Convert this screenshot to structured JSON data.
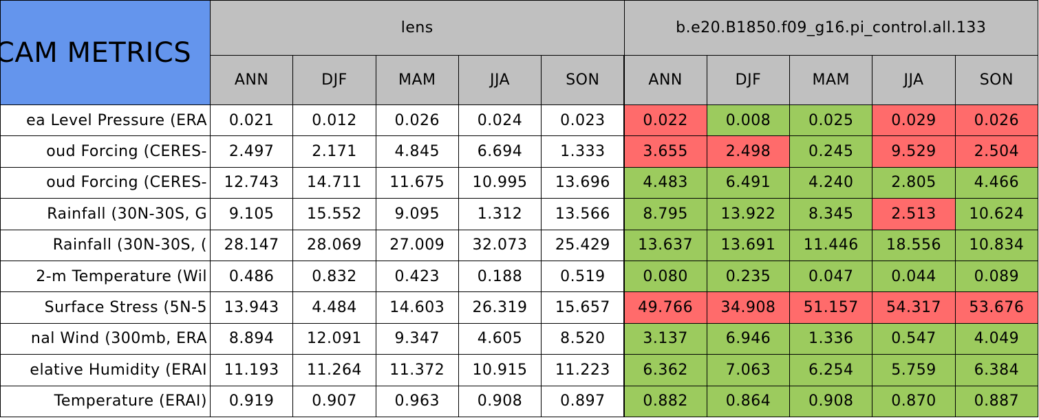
{
  "title": "CAM METRICS",
  "groups": [
    "lens",
    "b.e20.B1850.f09_g16.pi_control.all.133"
  ],
  "seasons": [
    "ANN",
    "DJF",
    "MAM",
    "JJA",
    "SON",
    "ANN",
    "DJF",
    "MAM",
    "JJA",
    "SON"
  ],
  "rows": [
    {
      "label": "ea Level Pressure (ERA",
      "values": [
        "0.021",
        "0.012",
        "0.026",
        "0.024",
        "0.023",
        "0.022",
        "0.008",
        "0.025",
        "0.029",
        "0.026"
      ],
      "colors": [
        "#ffffff",
        "#ffffff",
        "#ffffff",
        "#ffffff",
        "#ffffff",
        "#ff6b6b",
        "#9ccb5e",
        "#9ccb5e",
        "#ff6b6b",
        "#ff6b6b"
      ]
    },
    {
      "label": "oud Forcing (CERES-",
      "values": [
        "2.497",
        "2.171",
        "4.845",
        "6.694",
        "1.333",
        "3.655",
        "2.498",
        "0.245",
        "9.529",
        "2.504"
      ],
      "colors": [
        "#ffffff",
        "#ffffff",
        "#ffffff",
        "#ffffff",
        "#ffffff",
        "#ff6b6b",
        "#ff6b6b",
        "#9ccb5e",
        "#ff6b6b",
        "#ff6b6b"
      ]
    },
    {
      "label": "oud Forcing (CERES-",
      "values": [
        "12.743",
        "14.711",
        "11.675",
        "10.995",
        "13.696",
        "4.483",
        "6.491",
        "4.240",
        "2.805",
        "4.466"
      ],
      "colors": [
        "#ffffff",
        "#ffffff",
        "#ffffff",
        "#ffffff",
        "#ffffff",
        "#9ccb5e",
        "#9ccb5e",
        "#9ccb5e",
        "#9ccb5e",
        "#9ccb5e"
      ]
    },
    {
      "label": "Rainfall (30N-30S, G",
      "values": [
        "9.105",
        "15.552",
        "9.095",
        "1.312",
        "13.566",
        "8.795",
        "13.922",
        "8.345",
        "2.513",
        "10.624"
      ],
      "colors": [
        "#ffffff",
        "#ffffff",
        "#ffffff",
        "#ffffff",
        "#ffffff",
        "#9ccb5e",
        "#9ccb5e",
        "#9ccb5e",
        "#ff6b6b",
        "#9ccb5e"
      ]
    },
    {
      "label": "Rainfall (30N-30S, (",
      "values": [
        "28.147",
        "28.069",
        "27.009",
        "32.073",
        "25.429",
        "13.637",
        "13.691",
        "11.446",
        "18.556",
        "10.834"
      ],
      "colors": [
        "#ffffff",
        "#ffffff",
        "#ffffff",
        "#ffffff",
        "#ffffff",
        "#9ccb5e",
        "#9ccb5e",
        "#9ccb5e",
        "#9ccb5e",
        "#9ccb5e"
      ]
    },
    {
      "label": "2-m Temperature (Wil",
      "values": [
        "0.486",
        "0.832",
        "0.423",
        "0.188",
        "0.519",
        "0.080",
        "0.235",
        "0.047",
        "0.044",
        "0.089"
      ],
      "colors": [
        "#ffffff",
        "#ffffff",
        "#ffffff",
        "#ffffff",
        "#ffffff",
        "#9ccb5e",
        "#9ccb5e",
        "#9ccb5e",
        "#9ccb5e",
        "#9ccb5e"
      ]
    },
    {
      "label": "Surface Stress (5N-5",
      "values": [
        "13.943",
        "4.484",
        "14.603",
        "26.319",
        "15.657",
        "49.766",
        "34.908",
        "51.157",
        "54.317",
        "53.676"
      ],
      "colors": [
        "#ffffff",
        "#ffffff",
        "#ffffff",
        "#ffffff",
        "#ffffff",
        "#ff6b6b",
        "#ff6b6b",
        "#ff6b6b",
        "#ff6b6b",
        "#ff6b6b"
      ]
    },
    {
      "label": "nal Wind (300mb, ERA",
      "values": [
        "8.894",
        "12.091",
        "9.347",
        "4.605",
        "8.520",
        "3.137",
        "6.946",
        "1.336",
        "0.547",
        "4.049"
      ],
      "colors": [
        "#ffffff",
        "#ffffff",
        "#ffffff",
        "#ffffff",
        "#ffffff",
        "#9ccb5e",
        "#9ccb5e",
        "#9ccb5e",
        "#9ccb5e",
        "#9ccb5e"
      ]
    },
    {
      "label": "elative Humidity (ERAI",
      "values": [
        "11.193",
        "11.264",
        "11.372",
        "10.915",
        "11.223",
        "6.362",
        "7.063",
        "6.254",
        "5.759",
        "6.384"
      ],
      "colors": [
        "#ffffff",
        "#ffffff",
        "#ffffff",
        "#ffffff",
        "#ffffff",
        "#9ccb5e",
        "#9ccb5e",
        "#9ccb5e",
        "#9ccb5e",
        "#9ccb5e"
      ]
    },
    {
      "label": "Temperature (ERAI)",
      "values": [
        "0.919",
        "0.907",
        "0.963",
        "0.908",
        "0.897",
        "0.882",
        "0.864",
        "0.908",
        "0.870",
        "0.887"
      ],
      "colors": [
        "#ffffff",
        "#ffffff",
        "#ffffff",
        "#ffffff",
        "#ffffff",
        "#9ccb5e",
        "#9ccb5e",
        "#9ccb5e",
        "#9ccb5e",
        "#9ccb5e"
      ]
    }
  ]
}
